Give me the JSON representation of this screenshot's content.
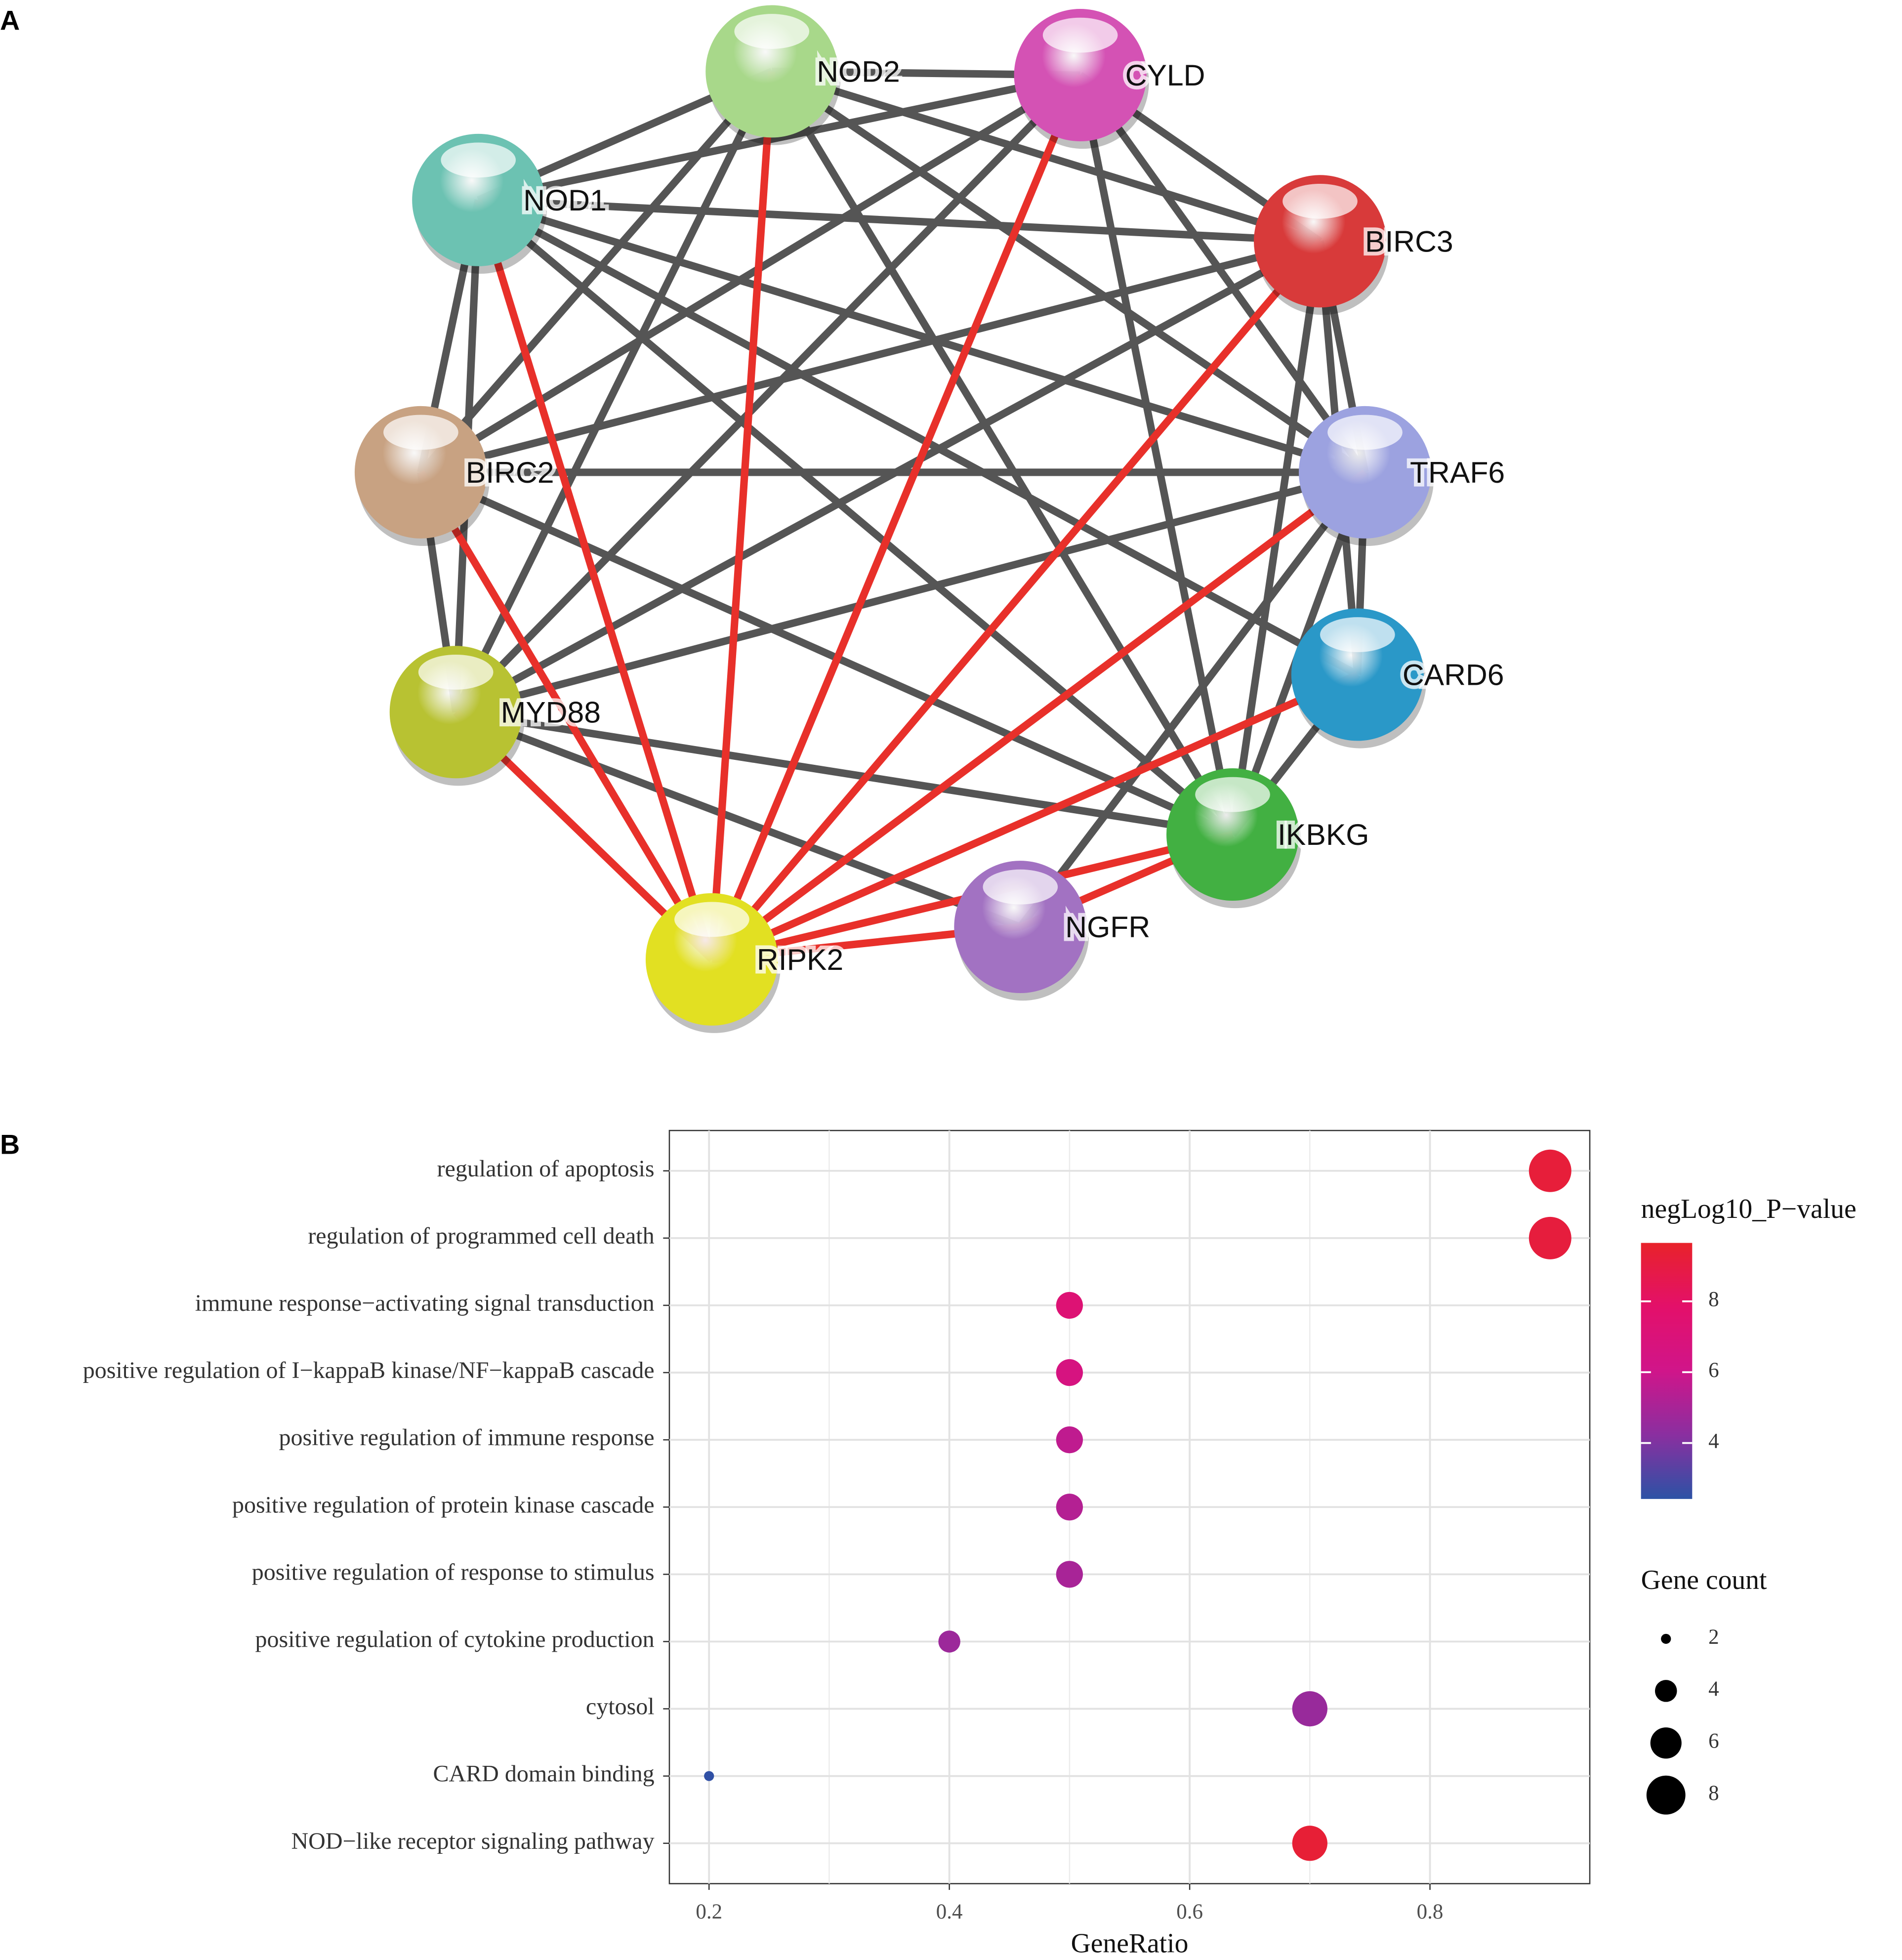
{
  "panels": [
    "A",
    "B"
  ],
  "network": {
    "nodes": [
      {
        "label": "NOD2",
        "color": "#a8d88a"
      },
      {
        "label": "CYLD",
        "color": "#d452b4"
      },
      {
        "label": "NOD1",
        "color": "#6cc2b2"
      },
      {
        "label": "BIRC3",
        "color": "#d83a3a"
      },
      {
        "label": "BIRC2",
        "color": "#c8a282"
      },
      {
        "label": "TRAF6",
        "color": "#9ca2e0"
      },
      {
        "label": "CARD6",
        "color": "#2a98c8"
      },
      {
        "label": "MYD88",
        "color": "#b8c232"
      },
      {
        "label": "IKBKG",
        "color": "#42b042"
      },
      {
        "label": "NGFR",
        "color": "#a272c2"
      },
      {
        "label": "RIPK2",
        "color": "#e2e022"
      }
    ],
    "edges": [
      [
        0,
        1,
        "#555555"
      ],
      [
        0,
        3,
        "#555555"
      ],
      [
        0,
        5,
        "#555555"
      ],
      [
        0,
        8,
        "#555555"
      ],
      [
        0,
        4,
        "#555555"
      ],
      [
        0,
        7,
        "#555555"
      ],
      [
        0,
        2,
        "#555555"
      ],
      [
        2,
        1,
        "#555555"
      ],
      [
        2,
        3,
        "#555555"
      ],
      [
        2,
        5,
        "#555555"
      ],
      [
        2,
        6,
        "#555555"
      ],
      [
        2,
        8,
        "#555555"
      ],
      [
        2,
        4,
        "#555555"
      ],
      [
        2,
        7,
        "#555555"
      ],
      [
        1,
        3,
        "#555555"
      ],
      [
        1,
        5,
        "#555555"
      ],
      [
        1,
        8,
        "#555555"
      ],
      [
        1,
        4,
        "#555555"
      ],
      [
        1,
        7,
        "#555555"
      ],
      [
        3,
        5,
        "#555555"
      ],
      [
        3,
        8,
        "#555555"
      ],
      [
        3,
        4,
        "#555555"
      ],
      [
        3,
        7,
        "#555555"
      ],
      [
        3,
        6,
        "#555555"
      ],
      [
        5,
        4,
        "#555555"
      ],
      [
        5,
        7,
        "#555555"
      ],
      [
        5,
        8,
        "#555555"
      ],
      [
        5,
        6,
        "#555555"
      ],
      [
        5,
        9,
        "#555555"
      ],
      [
        4,
        7,
        "#555555"
      ],
      [
        4,
        8,
        "#555555"
      ],
      [
        7,
        8,
        "#555555"
      ],
      [
        7,
        9,
        "#555555"
      ],
      [
        6,
        8,
        "#555555"
      ],
      [
        10,
        2,
        "#e8302a"
      ],
      [
        10,
        0,
        "#e8302a"
      ],
      [
        10,
        1,
        "#e8302a"
      ],
      [
        10,
        3,
        "#e8302a"
      ],
      [
        10,
        5,
        "#e8302a"
      ],
      [
        10,
        6,
        "#e8302a"
      ],
      [
        10,
        8,
        "#e8302a"
      ],
      [
        10,
        9,
        "#e8302a"
      ],
      [
        10,
        7,
        "#e8302a"
      ],
      [
        10,
        4,
        "#e8302a"
      ],
      [
        9,
        8,
        "#e8302a"
      ]
    ]
  },
  "chart_data": {
    "type": "dot",
    "categories": [
      "regulation of apoptosis",
      "regulation of programmed cell death",
      "immune response−activating signal transduction",
      "positive regulation of I−kappaB kinase/NF−kappaB cascade",
      "positive regulation of immune response",
      "positive regulation of protein kinase cascade",
      "positive regulation of response to stimulus",
      "positive regulation of cytokine production",
      "cytosol",
      "CARD domain binding",
      "NOD−like receptor signaling pathway"
    ],
    "x": [
      0.9,
      0.9,
      0.5,
      0.5,
      0.5,
      0.5,
      0.5,
      0.4,
      0.7,
      0.2,
      0.7
    ],
    "color_values": [
      9.2,
      9.1,
      7.3,
      6.6,
      5.6,
      5.3,
      5.0,
      4.7,
      4.6,
      2.5,
      9.3
    ],
    "size_values": [
      9,
      9,
      5,
      5,
      5,
      5,
      5,
      4,
      7,
      2,
      7
    ],
    "xlabel": "GeneRatio",
    "xlim": [
      0.167,
      0.933
    ],
    "xticks": [
      0.2,
      0.4,
      0.6,
      0.8
    ],
    "grid": true,
    "color_title": "negLog10_P−value",
    "colorlim": [
      2.42,
      9.65
    ],
    "colorticks": [
      4,
      6,
      8
    ],
    "colormap": [
      "#2c52a5",
      "#8a2fa0",
      "#d0158a",
      "#e3106a",
      "#e8222a"
    ],
    "size_title": "Gene count",
    "size_ticks": [
      2,
      4,
      6,
      8
    ]
  }
}
